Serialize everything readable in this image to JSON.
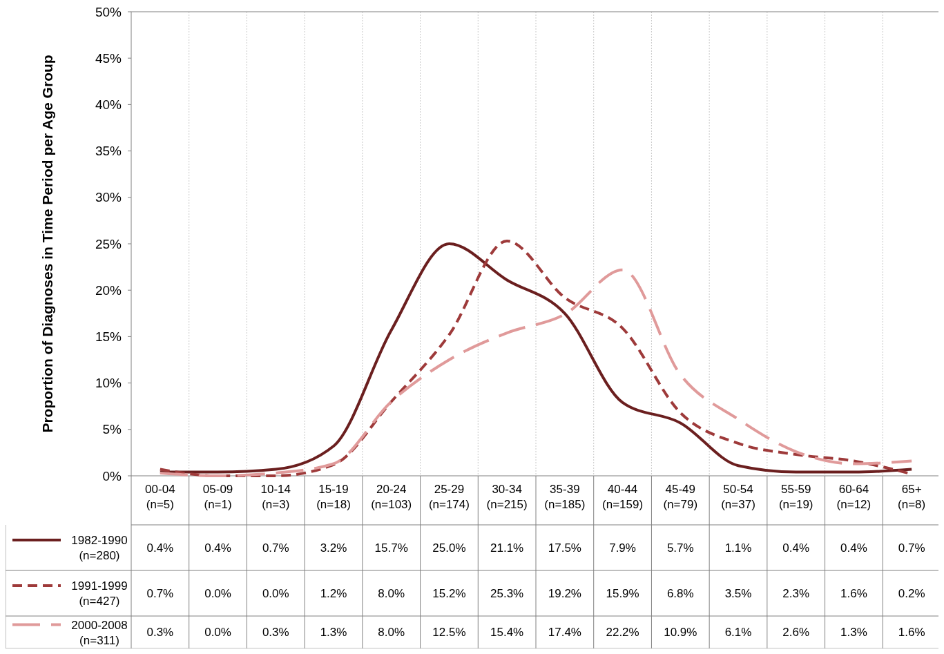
{
  "chart_data": {
    "type": "line",
    "ylabel": "Proportion of Diagnoses in Time Period per Age Group",
    "categories": [
      "00-04\n(n=5)",
      "05-09\n(n=1)",
      "10-14\n(n=3)",
      "15-19\n(n=18)",
      "20-24\n(n=103)",
      "25-29\n(n=174)",
      "30-34\n(n=215)",
      "35-39\n(n=185)",
      "40-44\n(n=159)",
      "45-49\n(n=79)",
      "50-54\n(n=37)",
      "55-59\n(n=19)",
      "60-64\n(n=12)",
      "65+\n(n=8)"
    ],
    "series": [
      {
        "name": "1982-1990\n(n=280)",
        "color": "#6b1f1f",
        "line_style": "solid",
        "values": [
          0.4,
          0.4,
          0.7,
          3.2,
          15.7,
          25.0,
          21.1,
          17.5,
          7.9,
          5.7,
          1.1,
          0.4,
          0.4,
          0.7
        ],
        "value_labels": [
          "0.4%",
          "0.4%",
          "0.7%",
          "3.2%",
          "15.7%",
          "25.0%",
          "21.1%",
          "17.5%",
          "7.9%",
          "5.7%",
          "1.1%",
          "0.4%",
          "0.4%",
          "0.7%"
        ]
      },
      {
        "name": "1991-1999\n(n=427)",
        "color": "#9e3a3a",
        "line_style": "dashed",
        "values": [
          0.7,
          0.0,
          0.0,
          1.2,
          8.0,
          15.2,
          25.3,
          19.2,
          15.9,
          6.8,
          3.5,
          2.3,
          1.6,
          0.2
        ],
        "value_labels": [
          "0.7%",
          "0.0%",
          "0.0%",
          "1.2%",
          "8.0%",
          "15.2%",
          "25.3%",
          "19.2%",
          "15.9%",
          "6.8%",
          "3.5%",
          "2.3%",
          "1.6%",
          "0.2%"
        ]
      },
      {
        "name": "2000-2008\n(n=311)",
        "color": "#e09a9a",
        "line_style": "dashed",
        "values": [
          0.3,
          0.0,
          0.3,
          1.3,
          8.0,
          12.5,
          15.4,
          17.4,
          22.2,
          10.9,
          6.1,
          2.6,
          1.3,
          1.6
        ],
        "value_labels": [
          "0.3%",
          "0.0%",
          "0.3%",
          "1.3%",
          "8.0%",
          "12.5%",
          "15.4%",
          "17.4%",
          "22.2%",
          "10.9%",
          "6.1%",
          "2.6%",
          "1.3%",
          "1.6%"
        ]
      }
    ],
    "ylim": [
      0,
      50
    ],
    "yticks": [
      {
        "value": 0,
        "label": "0%"
      },
      {
        "value": 5,
        "label": "5%"
      },
      {
        "value": 10,
        "label": "10%"
      },
      {
        "value": 15,
        "label": "15%"
      },
      {
        "value": 20,
        "label": "20%"
      },
      {
        "value": 25,
        "label": "25%"
      },
      {
        "value": 30,
        "label": "30%"
      },
      {
        "value": 35,
        "label": "35%"
      },
      {
        "value": 40,
        "label": "40%"
      },
      {
        "value": 45,
        "label": "45%"
      },
      {
        "value": 50,
        "label": "50%"
      }
    ],
    "grid": "x",
    "legend": "bottom",
    "marker": "none"
  }
}
